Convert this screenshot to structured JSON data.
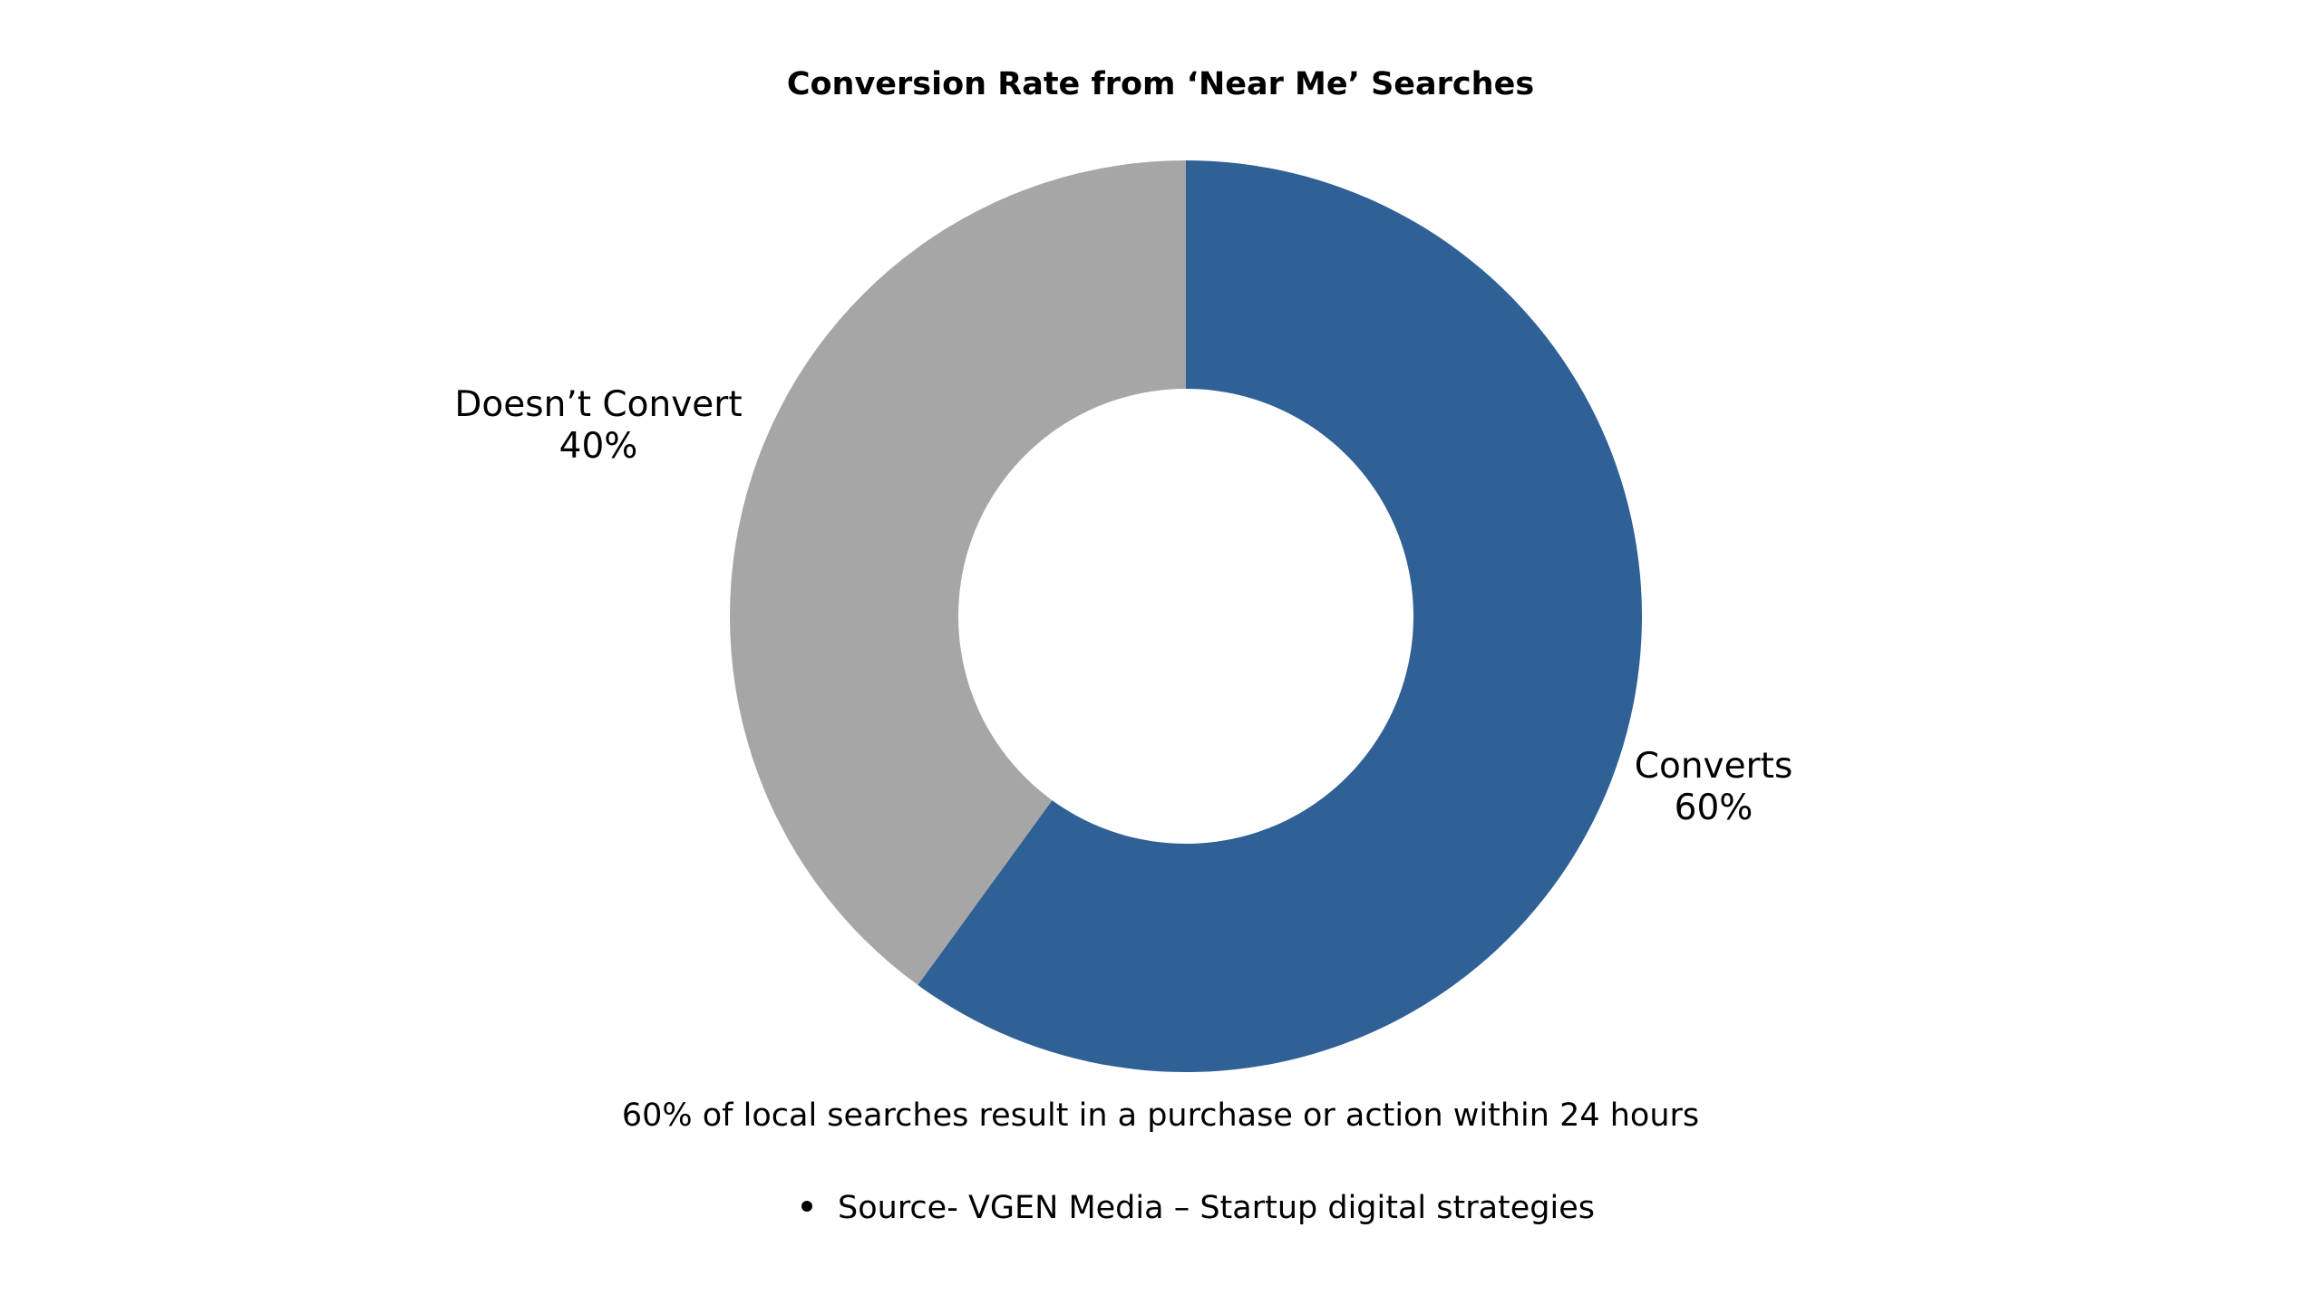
{
  "chart_data": {
    "type": "pie",
    "variant": "donut",
    "title": "Conversion Rate from ‘Near Me’ Searches",
    "slices": [
      {
        "name": "Converts",
        "value": 60,
        "value_label": "60%",
        "color": "#2f6096"
      },
      {
        "name": "Doesn’t Convert",
        "value": 40,
        "value_label": "40%",
        "color": "#a6a6a6"
      }
    ],
    "legend": "none"
  },
  "caption": "60% of local searches result in a purchase or action within 24 hours",
  "source": "Source- VGEN Media – Startup digital strategies"
}
